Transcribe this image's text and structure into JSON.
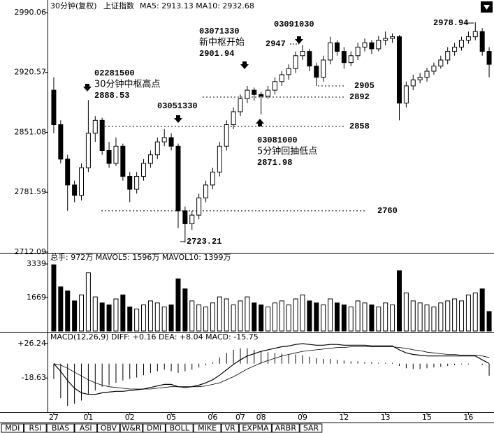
{
  "chart_data": {
    "type": "candlestick",
    "period": "30分钟(复权)",
    "name": "上证指数",
    "ma_text": "MA5: 2913.13  MA10: 2932.68",
    "categories": [
      "27",
      null,
      null,
      null,
      null,
      "01",
      null,
      null,
      null,
      null,
      null,
      "02",
      null,
      null,
      null,
      null,
      null,
      "05",
      null,
      null,
      null,
      null,
      null,
      "06",
      null,
      null,
      null,
      "07",
      null,
      null,
      "08",
      null,
      null,
      null,
      null,
      null,
      "09",
      null,
      null,
      null,
      null,
      null,
      "12",
      null,
      null,
      null,
      null,
      null,
      "13",
      null,
      null,
      null,
      null,
      null,
      "15",
      null,
      null,
      null,
      null,
      null,
      "16",
      null,
      null,
      null
    ],
    "candles": [
      [
        2900,
        2915,
        2850,
        2860
      ],
      [
        2860,
        2865,
        2815,
        2820
      ],
      [
        2820,
        2825,
        2760,
        2790
      ],
      [
        2790,
        2795,
        2770,
        2778
      ],
      [
        2778,
        2815,
        2772,
        2810
      ],
      [
        2810,
        2888.53,
        2805,
        2850
      ],
      [
        2850,
        2870,
        2840,
        2865
      ],
      [
        2865,
        2868,
        2825,
        2830
      ],
      [
        2830,
        2840,
        2810,
        2815
      ],
      [
        2815,
        2845,
        2812,
        2835
      ],
      [
        2835,
        2838,
        2795,
        2800
      ],
      [
        2800,
        2805,
        2770,
        2785
      ],
      [
        2785,
        2805,
        2780,
        2800
      ],
      [
        2800,
        2820,
        2795,
        2815
      ],
      [
        2815,
        2830,
        2810,
        2825
      ],
      [
        2825,
        2845,
        2820,
        2840
      ],
      [
        2840,
        2855,
        2835,
        2845
      ],
      [
        2845,
        2850,
        2830,
        2835
      ],
      [
        2835,
        2838,
        2740,
        2760
      ],
      [
        2760,
        2765,
        2723.21,
        2745
      ],
      [
        2745,
        2760,
        2738,
        2755
      ],
      [
        2755,
        2780,
        2750,
        2775
      ],
      [
        2775,
        2795,
        2770,
        2790
      ],
      [
        2790,
        2810,
        2785,
        2805
      ],
      [
        2805,
        2840,
        2800,
        2835
      ],
      [
        2835,
        2865,
        2830,
        2860
      ],
      [
        2860,
        2880,
        2855,
        2875
      ],
      [
        2875,
        2895,
        2870,
        2890
      ],
      [
        2890,
        2905,
        2885,
        2900
      ],
      [
        2900,
        2903,
        2888,
        2895
      ],
      [
        2895,
        2898,
        2871.98,
        2893
      ],
      [
        2893,
        2905,
        2890,
        2900
      ],
      [
        2900,
        2915,
        2895,
        2910
      ],
      [
        2910,
        2922,
        2905,
        2918
      ],
      [
        2918,
        2930,
        2912,
        2925
      ],
      [
        2925,
        2945,
        2920,
        2940
      ],
      [
        2940,
        2952,
        2935,
        2945
      ],
      [
        2945,
        2948,
        2922,
        2928
      ],
      [
        2928,
        2932,
        2905,
        2915
      ],
      [
        2915,
        2940,
        2910,
        2935
      ],
      [
        2935,
        2962,
        2930,
        2955
      ],
      [
        2955,
        2958,
        2940,
        2945
      ],
      [
        2945,
        2950,
        2925,
        2932
      ],
      [
        2932,
        2945,
        2928,
        2940
      ],
      [
        2940,
        2955,
        2935,
        2950
      ],
      [
        2950,
        2960,
        2945,
        2955
      ],
      [
        2955,
        2958,
        2942,
        2948
      ],
      [
        2948,
        2963,
        2945,
        2958
      ],
      [
        2958,
        2968,
        2952,
        2960
      ],
      [
        2960,
        2966,
        2955,
        2962
      ],
      [
        2962,
        2964,
        2865,
        2885
      ],
      [
        2885,
        2910,
        2880,
        2905
      ],
      [
        2905,
        2918,
        2900,
        2912
      ],
      [
        2912,
        2920,
        2908,
        2915
      ],
      [
        2915,
        2926,
        2910,
        2922
      ],
      [
        2922,
        2932,
        2918,
        2928
      ],
      [
        2928,
        2940,
        2925,
        2935
      ],
      [
        2935,
        2950,
        2930,
        2945
      ],
      [
        2945,
        2955,
        2940,
        2950
      ],
      [
        2950,
        2962,
        2946,
        2958
      ],
      [
        2958,
        2968,
        2954,
        2962
      ],
      [
        2962,
        2978.94,
        2958,
        2968
      ],
      [
        2968,
        2972,
        2940,
        2945
      ],
      [
        2945,
        2950,
        2915,
        2930
      ]
    ],
    "ylim": [
      2712.09,
      2990.06
    ],
    "yticks": [
      2712.09,
      2781.59,
      2851.08,
      2920.57,
      2990.06
    ],
    "levels": [
      2905,
      2892,
      2858,
      2760
    ],
    "annotations": [
      [
        "02281500",
        "30分钟中枢高点",
        "2888.53"
      ],
      [
        "03051330"
      ],
      [
        "03071330",
        "新中枢开始",
        "2901.94"
      ],
      [
        "03091030"
      ],
      [
        "2947"
      ],
      [
        "2978.94"
      ],
      [
        "03081000",
        "5分钟回抽低点",
        "2871.98"
      ],
      [
        "2723.21"
      ]
    ],
    "volume": {
      "header": "总手: 972万  MAVOL5: 1596万  MAVOL10: 1399万",
      "values": [
        3300,
        2200,
        2000,
        1500,
        1800,
        2900,
        1700,
        1400,
        1300,
        1600,
        1800,
        1200,
        1100,
        1300,
        1500,
        1400,
        1200,
        1300,
        2600,
        2100,
        1500,
        1300,
        1200,
        1400,
        1700,
        1600,
        1300,
        1500,
        1700,
        1400,
        1300,
        1200,
        1400,
        1500,
        1300,
        1600,
        1800,
        1500,
        1400,
        1300,
        1600,
        1400,
        1300,
        1200,
        1500,
        1400,
        1300,
        1200,
        1400,
        1300,
        3000,
        1900,
        1500,
        1400,
        1300,
        1200,
        1400,
        1500,
        1600,
        1500,
        1800,
        1900,
        2100,
        972
      ],
      "ylim": [
        0,
        3339
      ],
      "yticks": [
        1669,
        3339
      ]
    },
    "macd": {
      "header": "MACD(12,26,9)  DIFF: +0.16  DEA: +8.04  MACD: -15.75",
      "hist": [
        -20,
        -45,
        -55,
        -52,
        -48,
        -40,
        -35,
        -30,
        -28,
        -25,
        -22,
        -20,
        -18,
        -15,
        -12,
        -10,
        -8,
        -10,
        -12,
        -10,
        -8,
        -5,
        -2,
        2,
        8,
        14,
        18,
        20,
        20,
        18,
        16,
        15,
        14,
        13,
        12,
        12,
        11,
        9,
        7,
        6,
        6,
        5,
        4,
        3,
        3,
        2,
        2,
        1,
        1,
        1,
        -3,
        -6,
        -7,
        -7,
        -6,
        -5,
        -4,
        -3,
        -2,
        -1,
        -1,
        0,
        -2,
        -15.75
      ],
      "diff": [
        0,
        -10,
        -22,
        -32,
        -38,
        -40,
        -40,
        -38,
        -37,
        -36,
        -36,
        -35,
        -34,
        -33,
        -31,
        -29,
        -27,
        -27,
        -30,
        -31,
        -30,
        -28,
        -25,
        -21,
        -15,
        -8,
        -1,
        5,
        10,
        13,
        16,
        18,
        20,
        22,
        23,
        25,
        26,
        25,
        24,
        24,
        25,
        25,
        24,
        24,
        24,
        24,
        23,
        23,
        23,
        23,
        18,
        14,
        12,
        11,
        10,
        10,
        10,
        10,
        10,
        10,
        10,
        10,
        5,
        0.16
      ],
      "dea": [
        0,
        -2,
        -6,
        -11,
        -16,
        -21,
        -25,
        -28,
        -30,
        -31,
        -32,
        -33,
        -33,
        -33,
        -33,
        -32,
        -31,
        -30,
        -30,
        -30,
        -30,
        -30,
        -29,
        -27,
        -25,
        -21,
        -17,
        -12,
        -7,
        -3,
        1,
        4,
        7,
        10,
        12,
        14,
        16,
        17,
        18,
        19,
        20,
        21,
        21,
        22,
        22,
        22,
        22,
        22,
        22,
        22,
        21,
        20,
        18,
        17,
        15,
        14,
        13,
        12,
        12,
        11,
        11,
        11,
        10,
        8.04
      ],
      "ylim": [
        -63,
        37
      ],
      "yticks": [
        -18.63,
        {
          "value": 26.24,
          "label": "+26.24"
        }
      ]
    },
    "tabs": [
      "MDI",
      "RSI",
      "BIAS",
      "ASI",
      "OBV",
      "W&R",
      "DMI",
      "BOLL",
      "MIKE",
      "VR",
      "EXPMA",
      "ARBR",
      "SAR"
    ]
  }
}
